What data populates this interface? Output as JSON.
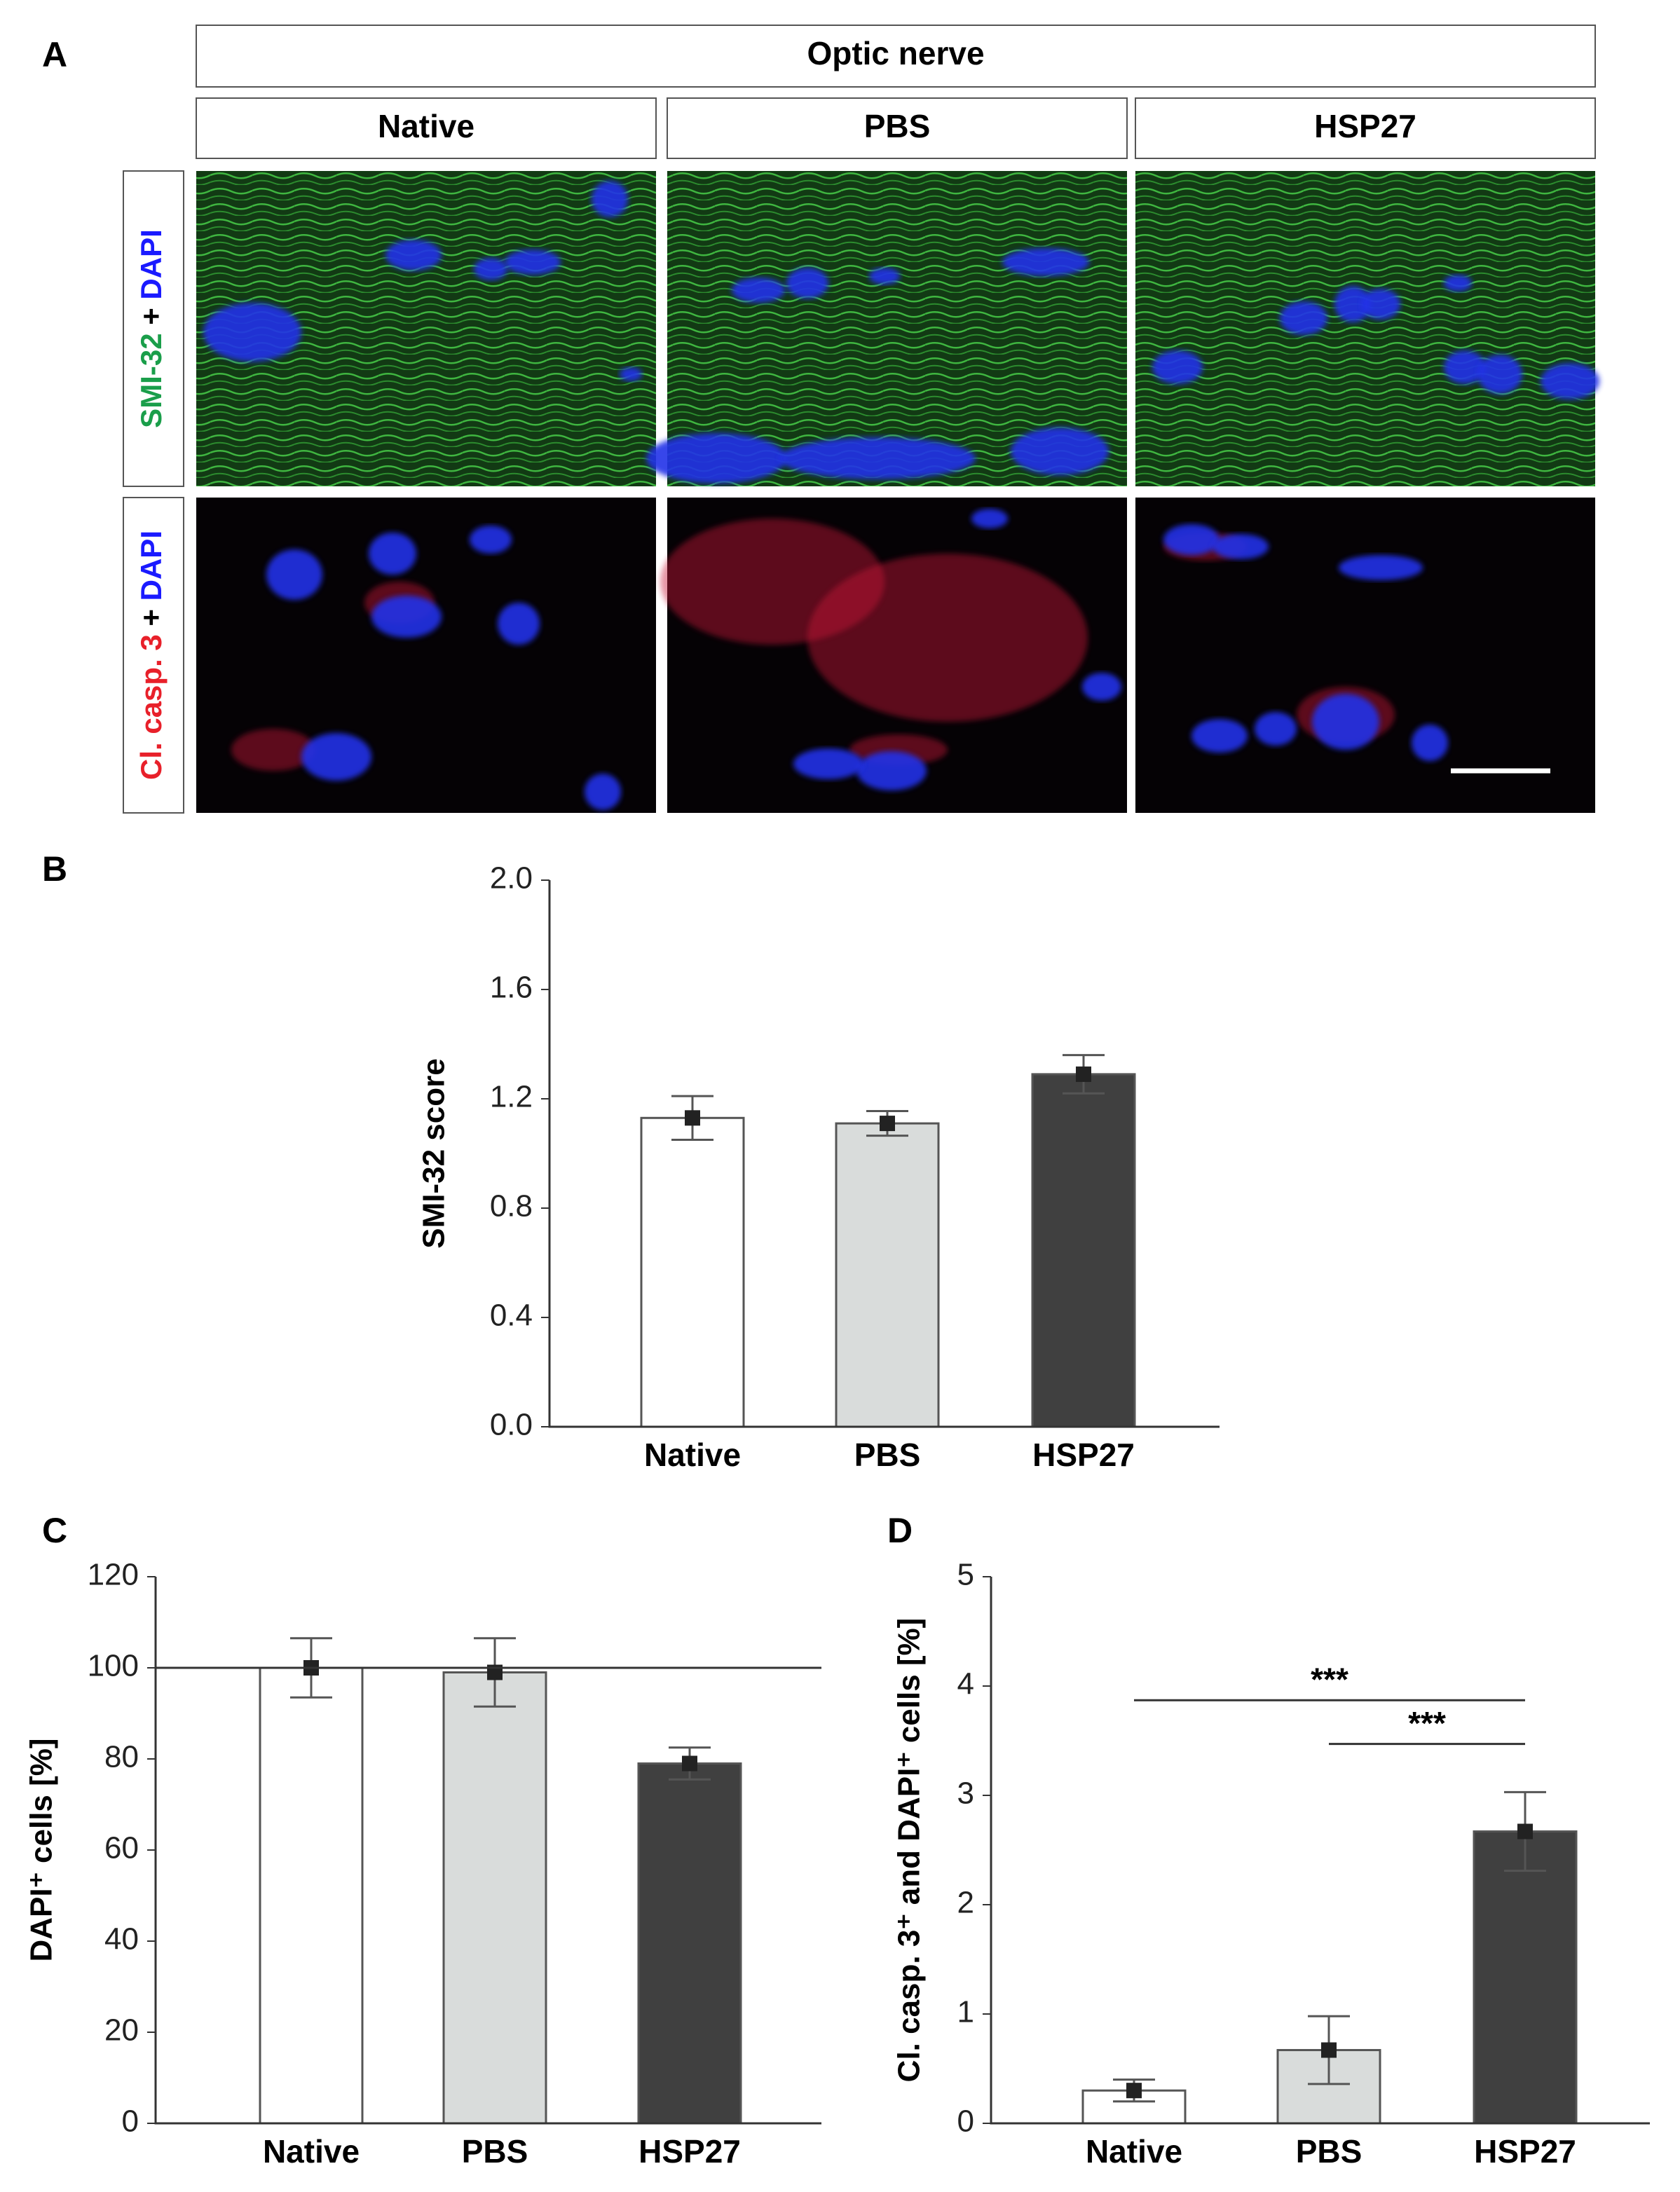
{
  "panel_a": {
    "label": "A",
    "title": "Optic nerve",
    "columns": [
      "Native",
      "PBS",
      "HSP27"
    ],
    "rows": [
      {
        "label": [
          {
            "text": "SMI-32",
            "color": "#1a9e4a"
          },
          {
            "text": " + ",
            "color": "#000000"
          },
          {
            "text": "DAPI",
            "color": "#1a1aff"
          }
        ]
      },
      {
        "label": [
          {
            "text": "Cl. casp. 3",
            "color": "#e8202a"
          },
          {
            "text": " + ",
            "color": "#000000"
          },
          {
            "text": "DAPI",
            "color": "#1a1aff"
          }
        ]
      }
    ]
  },
  "chart_data": [
    {
      "type": "bar",
      "panel": "B",
      "ylabel": "SMI-32 score",
      "categories": [
        "Native",
        "PBS",
        "HSP27"
      ],
      "values": [
        1.13,
        1.11,
        1.29
      ],
      "errors": [
        0.08,
        0.045,
        0.07
      ],
      "colors": [
        "#ffffff",
        "#d9dcdb",
        "#404040"
      ],
      "ylim": [
        0,
        2
      ],
      "yticks": [
        {
          "value": 0,
          "label": "0.0"
        },
        0.4,
        0.8,
        1.2,
        1.6,
        {
          "value": 2,
          "label": "2.0"
        }
      ]
    },
    {
      "type": "bar",
      "panel": "C",
      "ylabel": "DAPI⁺ cells  [%]",
      "categories": [
        "Native",
        "PBS",
        "HSP27"
      ],
      "values": [
        100,
        99,
        79
      ],
      "errors": [
        6.5,
        7.5,
        3.5
      ],
      "colors": [
        "#ffffff",
        "#d9dcdb",
        "#404040"
      ],
      "ylim": [
        0,
        120
      ],
      "yticks": [
        0,
        20,
        40,
        60,
        80,
        100,
        120
      ],
      "reference_line": 100
    },
    {
      "type": "bar",
      "panel": "D",
      "ylabel": "Cl. casp. 3⁺ and DAPI⁺ cells  [%]",
      "categories": [
        "Native",
        "PBS",
        "HSP27"
      ],
      "values": [
        0.3,
        0.67,
        2.67
      ],
      "errors": [
        0.1,
        0.31,
        0.36
      ],
      "colors": [
        "#ffffff",
        "#d9dcdb",
        "#404040"
      ],
      "ylim": [
        0,
        5
      ],
      "yticks": [
        0,
        1,
        2,
        3,
        4,
        5
      ],
      "annotations": [
        {
          "label": "***",
          "from": "Native",
          "to": "HSP27",
          "y": 3.87
        },
        {
          "label": "***",
          "from": "PBS",
          "to": "HSP27",
          "y": 3.47
        }
      ]
    }
  ]
}
